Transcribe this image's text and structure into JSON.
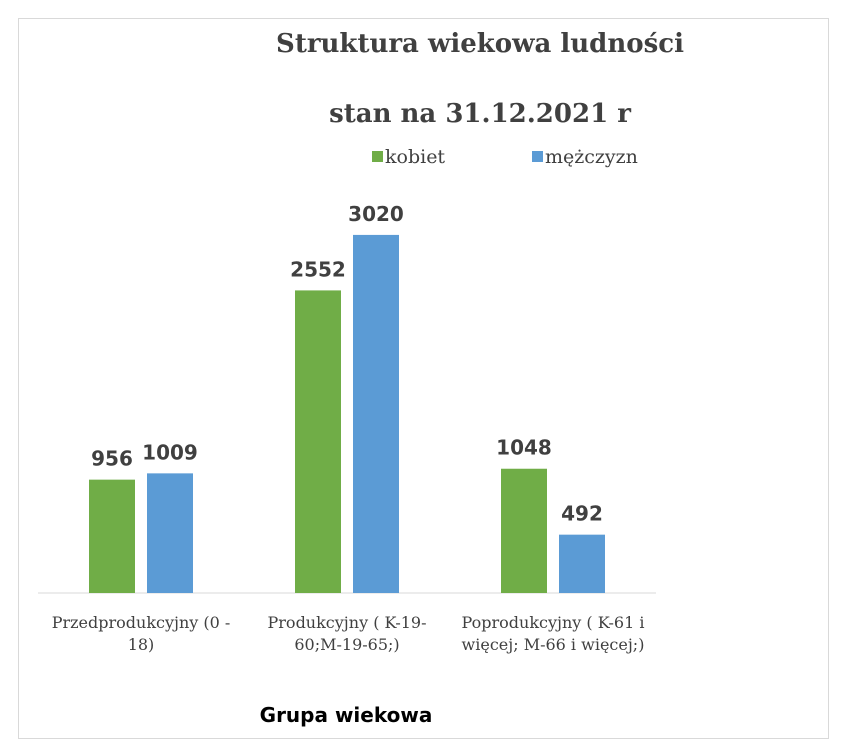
{
  "chart_data": {
    "type": "bar",
    "title": "Struktura wiekowa ludności",
    "subtitle": "stan na 31.12.2021 r",
    "x_label": "Grupa wiekowa",
    "categories": [
      "Przedprodukcyjny (0 - 18)",
      "Produkcyjny ( K-19-60;M-19-65;)",
      "Poprodukcyjny ( K-61 i więcej; M-66 i więcej;)"
    ],
    "series": [
      {
        "name": "kobiet",
        "color": "#70ad47",
        "values": [
          956,
          2552,
          1048
        ]
      },
      {
        "name": "mężczyzn",
        "color": "#5b9bd5",
        "values": [
          1009,
          3020,
          492
        ]
      }
    ],
    "ylim": [
      0,
      3500
    ],
    "legend": "top"
  }
}
